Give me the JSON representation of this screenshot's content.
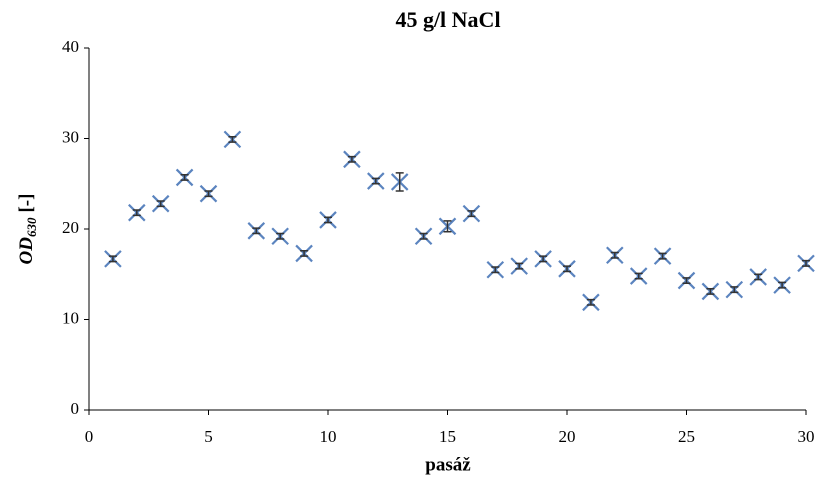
{
  "chart_data": {
    "type": "scatter",
    "title": "45 g/l NaCl",
    "x_label": "pasáž",
    "y_label": {
      "text": "OD",
      "subscript": "630",
      "suffix": "[-]"
    },
    "x": [
      1,
      2,
      3,
      4,
      5,
      6,
      7,
      8,
      9,
      10,
      11,
      12,
      13,
      14,
      15,
      16,
      17,
      18,
      19,
      20,
      21,
      22,
      23,
      24,
      25,
      26,
      27,
      28,
      29,
      30
    ],
    "values": [
      16.7,
      21.8,
      22.8,
      25.7,
      23.9,
      29.9,
      19.8,
      19.2,
      17.3,
      21.0,
      27.7,
      25.3,
      25.2,
      19.2,
      20.3,
      21.7,
      15.5,
      15.9,
      16.7,
      15.6,
      11.9,
      17.1,
      14.8,
      17.0,
      14.3,
      13.1,
      13.3,
      14.7,
      13.8,
      16.2
    ],
    "errors": [
      0.3,
      0.3,
      0.3,
      0.3,
      0.3,
      0.3,
      0.3,
      0.3,
      0.3,
      0.3,
      0.3,
      0.3,
      1.0,
      0.3,
      0.6,
      0.3,
      0.3,
      0.3,
      0.3,
      0.3,
      0.3,
      0.3,
      0.3,
      0.3,
      0.3,
      0.3,
      0.3,
      0.3,
      0.3,
      0.3
    ],
    "color": "#5b84bf",
    "error_color": "#333333",
    "xlim": [
      0,
      30
    ],
    "xticks": [
      0,
      5,
      10,
      15,
      20,
      25,
      30
    ],
    "ylim": [
      0,
      40
    ],
    "yticks": [
      0,
      10,
      20,
      30,
      40
    ],
    "grid": false
  }
}
